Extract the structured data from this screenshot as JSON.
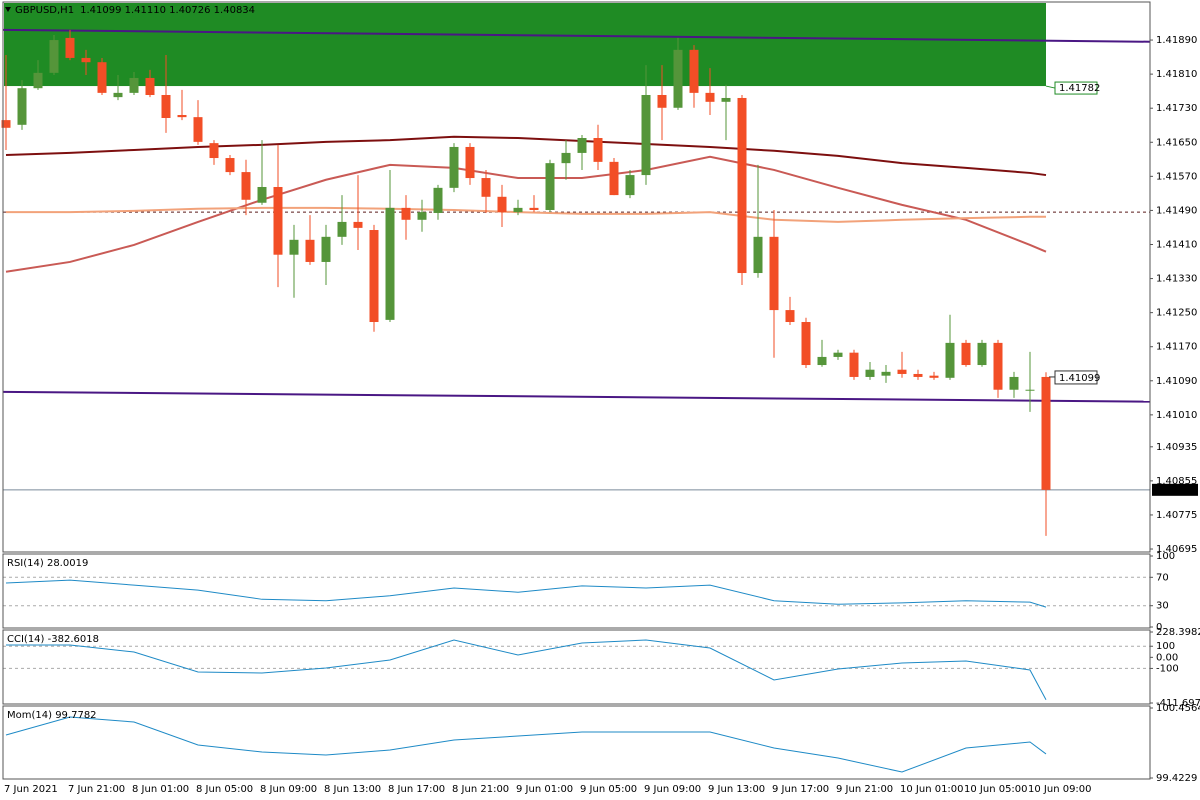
{
  "chart_data": [
    {
      "type": "candlestick",
      "title": "GBPUSD,H1",
      "subtitle": "1.41099 1.41110 1.40726 1.40834",
      "categories": [
        "7 Jun 2021",
        null,
        null,
        null,
        "7 Jun 21:00",
        null,
        null,
        null,
        "8 Jun 01:00",
        null,
        null,
        null,
        "8 Jun 05:00",
        null,
        null,
        null,
        "8 Jun 09:00",
        null,
        null,
        null,
        "8 Jun 13:00",
        null,
        null,
        null,
        "8 Jun 17:00",
        null,
        null,
        null,
        "8 Jun 21:00",
        null,
        null,
        null,
        "9 Jun 01:00",
        null,
        null,
        null,
        "9 Jun 05:00",
        null,
        null,
        null,
        "9 Jun 09:00",
        null,
        null,
        null,
        "9 Jun 13:00",
        null,
        null,
        null,
        "9 Jun 17:00",
        null,
        null,
        null,
        "9 Jun 21:00",
        null,
        null,
        null,
        "10 Jun 01:00",
        null,
        null,
        null,
        "10 Jun 05:00",
        null,
        null,
        null,
        "10 Jun 09:00",
        null
      ],
      "open": [
        1.41702,
        1.41691,
        1.41777,
        1.41813,
        1.41895,
        1.41848,
        1.41838,
        1.41756,
        1.41766,
        1.41801,
        1.41761,
        1.41714,
        1.41709,
        1.41648,
        1.41613,
        1.4158,
        1.41508,
        1.41545,
        1.41386,
        1.41421,
        1.41369,
        1.41428,
        1.41463,
        1.41444,
        1.41233,
        1.41496,
        1.41468,
        1.41484,
        1.41543,
        1.41639,
        1.41566,
        1.41522,
        1.41486,
        1.41496,
        1.41491,
        1.41601,
        1.41625,
        1.4166,
        1.41604,
        1.41526,
        1.41573,
        1.41761,
        1.41731,
        1.41867,
        1.41766,
        1.41745,
        1.41754,
        1.41343,
        1.41428,
        1.41256,
        1.41228,
        1.41127,
        1.41146,
        1.41156,
        1.41099,
        1.41102,
        1.41116,
        1.41106,
        1.41102,
        1.41097,
        1.41179,
        1.41127,
        1.41179,
        1.41069,
        1.41069,
        1.41099
      ],
      "high": [
        1.41855,
        1.41796,
        1.41843,
        1.41902,
        1.41914,
        1.41867,
        1.41848,
        1.41808,
        1.41815,
        1.4182,
        1.41855,
        1.41773,
        1.41749,
        1.41655,
        1.4162,
        1.41609,
        1.41655,
        1.41644,
        1.41456,
        1.41479,
        1.41456,
        1.41526,
        1.41573,
        1.41456,
        1.41585,
        1.41526,
        1.41515,
        1.4155,
        1.41648,
        1.41648,
        1.41585,
        1.4155,
        1.41515,
        1.41526,
        1.41609,
        1.41655,
        1.41667,
        1.41691,
        1.41613,
        1.41585,
        1.41831,
        1.41831,
        1.41895,
        1.41878,
        1.41824,
        1.41785,
        1.41761,
        1.41597,
        1.41491,
        1.41287,
        1.41238,
        1.41186,
        1.41163,
        1.41163,
        1.41134,
        1.41127,
        1.41158,
        1.41116,
        1.41111,
        1.41245,
        1.41186,
        1.41186,
        1.41186,
        1.41111,
        1.41158,
        1.4111
      ],
      "low": [
        1.41632,
        1.41679,
        1.41773,
        1.41808,
        1.41843,
        1.41808,
        1.41761,
        1.41749,
        1.41761,
        1.41756,
        1.41672,
        1.41702,
        1.41644,
        1.41597,
        1.41573,
        1.41479,
        1.41503,
        1.4131,
        1.41285,
        1.41362,
        1.41315,
        1.41409,
        1.41397,
        1.41205,
        1.41228,
        1.41421,
        1.4144,
        1.41468,
        1.41533,
        1.4155,
        1.41484,
        1.41451,
        1.41479,
        1.41486,
        1.41486,
        1.41562,
        1.41585,
        1.41585,
        1.41526,
        1.41519,
        1.4155,
        1.41655,
        1.41726,
        1.41731,
        1.41714,
        1.41655,
        1.41315,
        1.41332,
        1.41144,
        1.41221,
        1.4112,
        1.41123,
        1.41139,
        1.41092,
        1.41092,
        1.41085,
        1.41097,
        1.41092,
        1.41092,
        1.41092,
        1.41123,
        1.41123,
        1.4105,
        1.4105,
        1.41017,
        1.40726
      ],
      "close": [
        1.41684,
        1.41777,
        1.41813,
        1.4189,
        1.41848,
        1.41838,
        1.41766,
        1.41766,
        1.41801,
        1.41761,
        1.41707,
        1.41709,
        1.41651,
        1.41613,
        1.4158,
        1.41515,
        1.41545,
        1.41386,
        1.41421,
        1.41369,
        1.41428,
        1.41463,
        1.41449,
        1.41228,
        1.41496,
        1.41468,
        1.41486,
        1.41543,
        1.41639,
        1.41566,
        1.41522,
        1.41486,
        1.41496,
        1.41491,
        1.41601,
        1.41625,
        1.4166,
        1.41604,
        1.41526,
        1.41573,
        1.41761,
        1.41731,
        1.41867,
        1.41766,
        1.41745,
        1.41754,
        1.41343,
        1.41428,
        1.41256,
        1.41228,
        1.41127,
        1.41146,
        1.41156,
        1.41099,
        1.41116,
        1.41111,
        1.41106,
        1.41099,
        1.41097,
        1.41179,
        1.41127,
        1.41179,
        1.41069,
        1.41099,
        1.41069,
        1.40834
      ],
      "up_color": "#55953a",
      "down_color": "#f24e26",
      "ylim": [
        1.40688,
        1.41977
      ],
      "yticks": [
        {
          "value": 1.4189,
          "label": "1.41890"
        },
        {
          "value": 1.4181,
          "label": "1.41810"
        },
        {
          "value": 1.4173,
          "label": "1.41730"
        },
        {
          "value": 1.4165,
          "label": "1.41650"
        },
        {
          "value": 1.4157,
          "label": "1.41570"
        },
        {
          "value": 1.4149,
          "label": "1.41490"
        },
        {
          "value": 1.4141,
          "label": "1.41410"
        },
        {
          "value": 1.4133,
          "label": "1.41330"
        },
        {
          "value": 1.4125,
          "label": "1.41250"
        },
        {
          "value": 1.4117,
          "label": "1.41170"
        },
        {
          "value": 1.4109,
          "label": "1.41090"
        },
        {
          "value": 1.4101,
          "label": "1.41010"
        },
        1.40935,
        1.40855,
        1.40775,
        1.40695
      ],
      "zone_low": 1.41782,
      "zone_color": "#1f8b24",
      "level_label": 1.41099,
      "current_price": 1.40834,
      "dashed_level": 1.41486,
      "trendlines": [
        {
          "color": "#4a1784",
          "values": [
            1.41914,
            1.41886
          ]
        },
        {
          "color": "#4a1784",
          "values": [
            1.41064,
            1.41041
          ]
        }
      ],
      "moving_averages": [
        {
          "color": "#7d0f0f",
          "x": [
            0,
            4,
            8,
            12,
            16,
            20,
            24,
            28,
            32,
            36,
            40,
            44,
            48,
            52,
            56,
            60,
            64,
            65
          ],
          "values": [
            1.4162,
            1.41625,
            1.41632,
            1.41639,
            1.41644,
            1.41651,
            1.41655,
            1.41663,
            1.4166,
            1.41653,
            1.41646,
            1.41639,
            1.4163,
            1.41618,
            1.41601,
            1.4159,
            1.41578,
            1.41573
          ]
        },
        {
          "color": "#c95a55",
          "x": [
            0,
            4,
            8,
            12,
            16,
            20,
            24,
            28,
            32,
            36,
            40,
            44,
            48,
            52,
            56,
            60,
            64,
            65
          ],
          "values": [
            1.41346,
            1.41369,
            1.41409,
            1.41463,
            1.41515,
            1.41562,
            1.41597,
            1.4159,
            1.41566,
            1.41566,
            1.41585,
            1.41616,
            1.41585,
            1.41543,
            1.41503,
            1.41468,
            1.41409,
            1.41393
          ]
        },
        {
          "color": "#f2a27a",
          "x": [
            0,
            4,
            8,
            12,
            16,
            20,
            24,
            28,
            32,
            36,
            40,
            44,
            48,
            52,
            56,
            60,
            64,
            65
          ],
          "values": [
            1.41486,
            1.41486,
            1.41489,
            1.41494,
            1.41496,
            1.41496,
            1.41494,
            1.41491,
            1.41486,
            1.41482,
            1.41482,
            1.41486,
            1.41468,
            1.41463,
            1.41468,
            1.41472,
            1.41475,
            1.41475
          ]
        }
      ]
    },
    {
      "type": "line",
      "title": "RSI(14) 28.0019",
      "color": "#1e8ac6",
      "x": [
        0,
        4,
        8,
        12,
        16,
        20,
        24,
        28,
        32,
        36,
        40,
        44,
        48,
        52,
        56,
        60,
        64,
        65
      ],
      "values": [
        62,
        66,
        59,
        52,
        39,
        37,
        44,
        55,
        49,
        58,
        55,
        59,
        37,
        32,
        34,
        37,
        35,
        28.0019
      ],
      "ylim": [
        0,
        100
      ],
      "yticks": [
        100,
        70,
        30,
        0
      ],
      "dashed_levels": [
        70,
        30
      ]
    },
    {
      "type": "line",
      "title": "CCI(14) -382.6018",
      "color": "#1e8ac6",
      "x": [
        0,
        4,
        8,
        12,
        16,
        20,
        24,
        28,
        32,
        36,
        40,
        44,
        48,
        52,
        56,
        60,
        64,
        65
      ],
      "values": [
        111,
        111,
        48,
        -132,
        -141,
        -96,
        -24,
        156,
        21,
        129,
        156,
        84,
        -204,
        -105,
        -51,
        -33,
        -114,
        -382.6018
      ],
      "ylim": [
        -411.697,
        228.3982
      ],
      "yticks": [
        228.3982,
        100,
        {
          "value": 0,
          "label": "0.00"
        },
        -100,
        -411.697
      ],
      "dashed_levels": [
        100,
        -100
      ]
    },
    {
      "type": "line",
      "title": "Mom(14) 99.7782",
      "color": "#1e8ac6",
      "x": [
        0,
        4,
        8,
        12,
        16,
        20,
        24,
        28,
        32,
        36,
        40,
        44,
        48,
        52,
        56,
        60,
        64,
        65
      ],
      "values": [
        100.0576,
        100.3235,
        100.2496,
        99.9099,
        99.8065,
        99.7622,
        99.836,
        99.9837,
        100.0428,
        100.1019,
        100.1019,
        100.1019,
        99.8656,
        99.7178,
        99.5111,
        99.8656,
        99.9542,
        99.7782
      ],
      "ylim": [
        99.4229,
        100.4564
      ],
      "yticks": [
        100.4564,
        99.4229
      ],
      "dashed_levels": []
    }
  ]
}
